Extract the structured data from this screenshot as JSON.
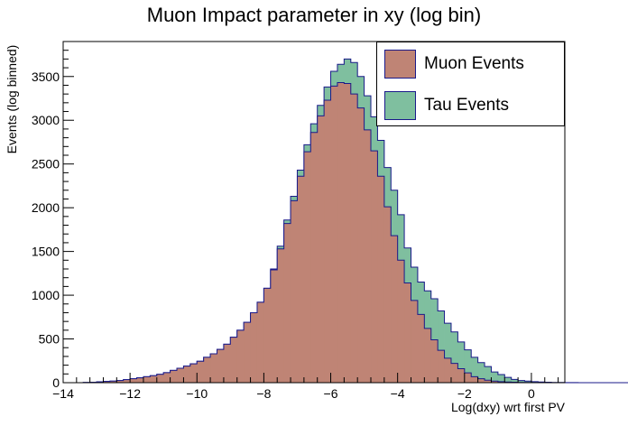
{
  "chart_data": {
    "type": "bar",
    "title": "Muon Impact parameter in xy (log bin)",
    "xlabel": "Log(dxy) wrt first PV",
    "ylabel": "Events (log binned)",
    "xlim": [
      -14,
      1
    ],
    "ylim": [
      0,
      3900
    ],
    "x_ticks": [
      "−14",
      "−12",
      "−10",
      "−8",
      "−6",
      "−4",
      "−2",
      "0"
    ],
    "y_ticks": [
      "0",
      "500",
      "1000",
      "1500",
      "2000",
      "2500",
      "3000",
      "3500"
    ],
    "legend_position": "top-right",
    "bins": {
      "start": -14,
      "width": 0.2
    },
    "series": [
      {
        "name": "Tau Events",
        "color": "#7fbf9f",
        "values": [
          0,
          0,
          0,
          2,
          4,
          10,
          14,
          18,
          25,
          35,
          45,
          55,
          68,
          80,
          95,
          115,
          140,
          165,
          190,
          215,
          245,
          290,
          330,
          380,
          440,
          520,
          600,
          690,
          800,
          920,
          1080,
          1300,
          1560,
          1860,
          2130,
          2430,
          2720,
          2960,
          3170,
          3380,
          3560,
          3640,
          3700,
          3660,
          3500,
          3280,
          3040,
          2770,
          2460,
          2200,
          1920,
          1540,
          1320,
          1150,
          1050,
          960,
          820,
          680,
          580,
          465,
          375,
          290,
          230,
          185,
          122,
          93,
          60,
          38,
          25,
          18,
          12,
          8,
          5,
          3,
          2,
          1,
          1,
          0,
          0,
          0,
          0,
          0,
          0,
          0,
          0
        ]
      },
      {
        "name": "Muon Events",
        "color": "#bf8475",
        "values": [
          0,
          0,
          0,
          2,
          4,
          10,
          14,
          18,
          25,
          35,
          45,
          55,
          68,
          80,
          95,
          115,
          140,
          165,
          190,
          215,
          245,
          290,
          330,
          380,
          440,
          520,
          600,
          690,
          800,
          920,
          1080,
          1290,
          1530,
          1820,
          2080,
          2360,
          2640,
          2860,
          3050,
          3230,
          3390,
          3430,
          3420,
          3300,
          3140,
          2890,
          2650,
          2360,
          2010,
          1680,
          1400,
          1140,
          940,
          780,
          620,
          490,
          370,
          280,
          220,
          160,
          112,
          68,
          45,
          28,
          18,
          12,
          8,
          5,
          3,
          2,
          1,
          1,
          0,
          0,
          0,
          0,
          0,
          0,
          0,
          0,
          0,
          0,
          0,
          0,
          0
        ]
      }
    ]
  }
}
